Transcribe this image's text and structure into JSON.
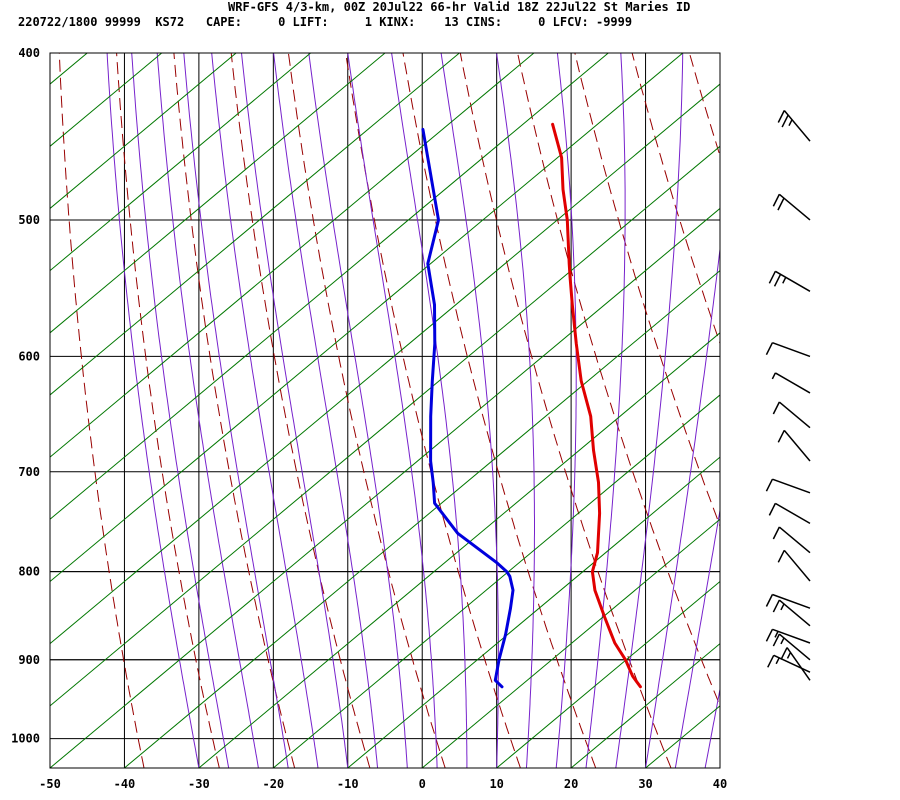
{
  "header": {
    "line1": "WRF-GFS 4/3-km, 00Z 20Jul22 66-hr Valid 18Z 22Jul22 St Maries ID",
    "line2": "220722/1800 99999  KS72   CAPE:     0 LIFT:     1 KINX:    13 CINS:     0 LFCV: -9999"
  },
  "chart_data": {
    "type": "line",
    "title": "WRF-GFS 4/3-km, 00Z 20Jul22 66-hr Valid 18Z 22Jul22 St Maries ID",
    "subtitle": "220722/1800 99999  KS72   CAPE:     0 LIFT:     1 KINX:    13 CINS:     0 LFCV: -9999",
    "x_ticks": [
      "-50",
      "-40",
      "-30",
      "-20",
      "-10",
      "0",
      "10",
      "20",
      "30",
      "40"
    ],
    "y_ticks": [
      "400",
      "500",
      "600",
      "700",
      "800",
      "900",
      "1000"
    ],
    "xlim": [
      -50,
      40
    ],
    "ylim": [
      1040,
      400
    ],
    "y_scale": "log",
    "grid": true,
    "colors": {
      "temperature": "#e00000",
      "dewpoint": "#0000dd",
      "dry_adiabat": "#990000",
      "moist_adiabat": "#7722cc",
      "mixing_ratio": "#007700",
      "grid": "#000000"
    },
    "series": [
      {
        "key": "temperature",
        "points": [
          [
            24.2,
            933
          ],
          [
            22.5,
            920
          ],
          [
            20.5,
            900
          ],
          [
            18.0,
            880
          ],
          [
            16.5,
            865
          ],
          [
            15.0,
            850
          ],
          [
            12.0,
            820
          ],
          [
            10.5,
            800
          ],
          [
            10.0,
            780
          ],
          [
            7.8,
            740
          ],
          [
            5.7,
            710
          ],
          [
            3.0,
            680
          ],
          [
            0.5,
            650
          ],
          [
            -3.0,
            620
          ],
          [
            -6.0,
            590
          ],
          [
            -9.0,
            560
          ],
          [
            -11.0,
            540
          ],
          [
            -12.0,
            530
          ],
          [
            -15.0,
            500
          ],
          [
            -17.5,
            480
          ],
          [
            -19.7,
            460
          ],
          [
            -23.0,
            440
          ]
        ]
      },
      {
        "key": "dewpoint",
        "points": [
          [
            5.6,
            933
          ],
          [
            4.3,
            925
          ],
          [
            3.5,
            900
          ],
          [
            2.8,
            870
          ],
          [
            1.8,
            840
          ],
          [
            1.0,
            820
          ],
          [
            -0.3,
            805
          ],
          [
            -1.0,
            800
          ],
          [
            -3.0,
            790
          ],
          [
            -10.0,
            760
          ],
          [
            -15.0,
            730
          ],
          [
            -16.5,
            710
          ],
          [
            -18.2,
            690
          ],
          [
            -21.0,
            650
          ],
          [
            -23.0,
            620
          ],
          [
            -25.0,
            590
          ],
          [
            -27.5,
            560
          ],
          [
            -31.0,
            530
          ],
          [
            -32.3,
            500
          ],
          [
            -40.1,
            443
          ]
        ]
      }
    ],
    "wind_barbs": [
      {
        "p": 450,
        "speed_kt": 25
      },
      {
        "p": 500,
        "speed_kt": 20
      },
      {
        "p": 550,
        "speed_kt": 25
      },
      {
        "p": 600,
        "speed_kt": 10
      },
      {
        "p": 630,
        "speed_kt": 5
      },
      {
        "p": 660,
        "speed_kt": 10
      },
      {
        "p": 690,
        "speed_kt": 10
      },
      {
        "p": 720,
        "speed_kt": 10
      },
      {
        "p": 750,
        "speed_kt": 10
      },
      {
        "p": 780,
        "speed_kt": 10
      },
      {
        "p": 810,
        "speed_kt": 10
      },
      {
        "p": 840,
        "speed_kt": 10
      },
      {
        "p": 860,
        "speed_kt": 15
      },
      {
        "p": 880,
        "speed_kt": 15
      },
      {
        "p": 900,
        "speed_kt": 15
      },
      {
        "p": 915,
        "speed_kt": 15
      },
      {
        "p": 925,
        "speed_kt": 15
      }
    ]
  }
}
